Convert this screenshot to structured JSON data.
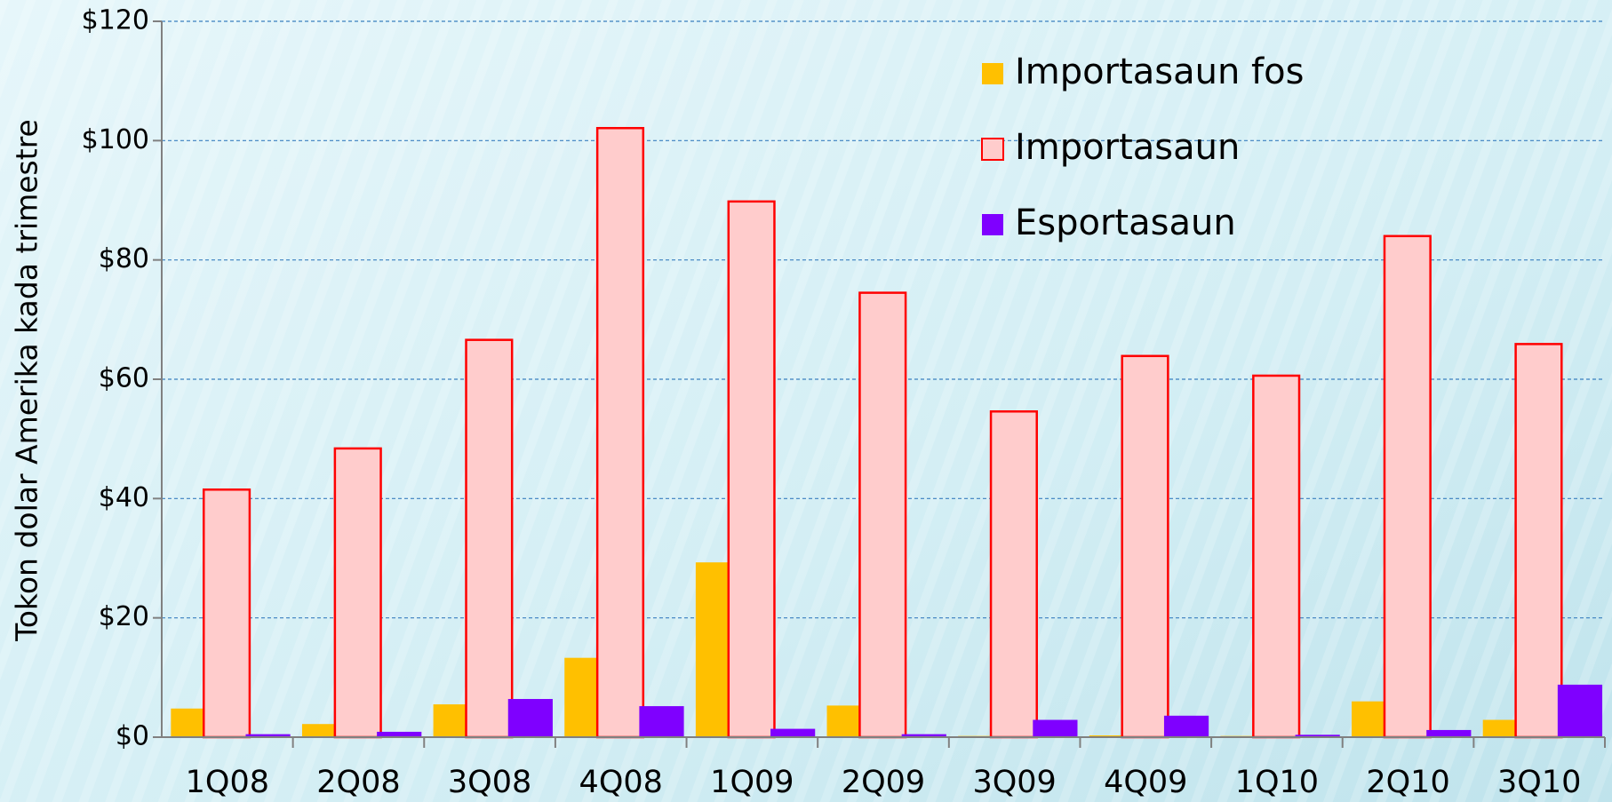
{
  "chart_data": {
    "type": "bar",
    "y_label": "Tokon dolar Amerika kada trimestre",
    "categories": [
      "1Q08",
      "2Q08",
      "3Q08",
      "4Q08",
      "1Q09",
      "2Q09",
      "3Q09",
      "4Q09",
      "1Q10",
      "2Q10",
      "3Q10"
    ],
    "series": [
      {
        "name": "Importasaun fos",
        "color": "#ffc000",
        "values": [
          4.8,
          2.2,
          5.5,
          13.3,
          29.3,
          5.3,
          0.2,
          0.3,
          0.2,
          6.0,
          2.9
        ]
      },
      {
        "name": "Importasaun",
        "color": "#ffcccc",
        "edge": "#ff0000",
        "values": [
          41.5,
          48.4,
          66.6,
          102.1,
          89.8,
          74.5,
          54.6,
          63.9,
          60.6,
          84.0,
          65.9
        ]
      },
      {
        "name": "Esportasaun",
        "color": "#7f00ff",
        "values": [
          0.5,
          0.9,
          6.4,
          5.2,
          1.4,
          0.5,
          2.9,
          3.6,
          0.4,
          1.2,
          8.8
        ]
      }
    ],
    "ylim": [
      0,
      120
    ],
    "yticks": [
      {
        "value": 0,
        "label": "$0"
      },
      {
        "value": 20,
        "label": "$20"
      },
      {
        "value": 40,
        "label": "$40"
      },
      {
        "value": 60,
        "label": "$60"
      },
      {
        "value": 80,
        "label": "$80"
      },
      {
        "value": 100,
        "label": "$100"
      },
      {
        "value": 120,
        "label": "$120"
      }
    ],
    "grid": true,
    "legend": "top-right"
  }
}
